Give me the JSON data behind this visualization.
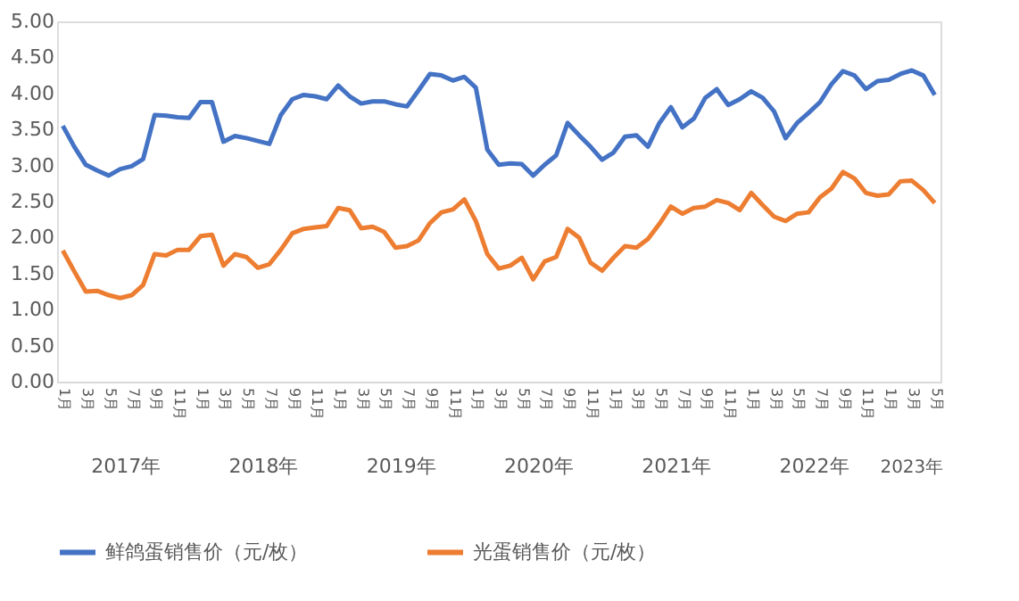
{
  "chart_data": {
    "type": "line",
    "categories": [
      "1月",
      null,
      "3月",
      null,
      "5月",
      null,
      "7月",
      null,
      "9月",
      null,
      "11月",
      null,
      "1月",
      null,
      "3月",
      null,
      "5月",
      null,
      "7月",
      null,
      "9月",
      null,
      "11月",
      null,
      "1月",
      null,
      "3月",
      null,
      "5月",
      null,
      "7月",
      null,
      "9月",
      null,
      "11月",
      null,
      "1月",
      null,
      "3月",
      null,
      "5月",
      null,
      "7月",
      null,
      "9月",
      null,
      "11月",
      null,
      "1月",
      null,
      "3月",
      null,
      "5月",
      null,
      "7月",
      null,
      "9月",
      null,
      "11月",
      null,
      "1月",
      null,
      "3月",
      null,
      "5月",
      null,
      "7月",
      null,
      "9月",
      null,
      "11月",
      null,
      "1月",
      null,
      "3月",
      null,
      "5月"
    ],
    "series": [
      {
        "name": "鲜鸽蛋销售价（元/枚）",
        "color": "#4472c4",
        "values": [
          3.55,
          3.26,
          3.01,
          2.93,
          2.86,
          2.95,
          2.99,
          3.09,
          3.7,
          3.69,
          3.67,
          3.66,
          3.88,
          3.88,
          3.33,
          3.41,
          3.38,
          3.34,
          3.3,
          3.7,
          3.92,
          3.98,
          3.96,
          3.92,
          4.11,
          3.96,
          3.86,
          3.89,
          3.89,
          3.85,
          3.82,
          4.04,
          4.27,
          4.25,
          4.18,
          4.23,
          4.08,
          3.22,
          3.01,
          3.03,
          3.02,
          2.86,
          3.01,
          3.14,
          3.59,
          3.42,
          3.26,
          3.08,
          3.18,
          3.4,
          3.42,
          3.26,
          3.59,
          3.81,
          3.53,
          3.65,
          3.94,
          4.06,
          3.84,
          3.92,
          4.03,
          3.94,
          3.75,
          3.38,
          3.59,
          3.73,
          3.88,
          4.13,
          4.31,
          4.25,
          4.06,
          4.17,
          4.19,
          4.27,
          4.32,
          4.25,
          3.98
        ]
      },
      {
        "name": "光蛋销售价（元/枚）",
        "color": "#ed7d31",
        "values": [
          1.82,
          1.53,
          1.25,
          1.26,
          1.2,
          1.16,
          1.2,
          1.34,
          1.77,
          1.75,
          1.83,
          1.83,
          2.02,
          2.04,
          1.61,
          1.77,
          1.73,
          1.58,
          1.63,
          1.83,
          2.06,
          2.12,
          2.14,
          2.16,
          2.41,
          2.38,
          2.13,
          2.15,
          2.08,
          1.86,
          1.88,
          1.96,
          2.2,
          2.35,
          2.39,
          2.53,
          2.23,
          1.77,
          1.57,
          1.61,
          1.72,
          1.42,
          1.67,
          1.73,
          2.12,
          2.0,
          1.65,
          1.54,
          1.72,
          1.88,
          1.86,
          1.98,
          2.19,
          2.43,
          2.33,
          2.41,
          2.43,
          2.52,
          2.48,
          2.38,
          2.62,
          2.45,
          2.29,
          2.23,
          2.33,
          2.35,
          2.56,
          2.68,
          2.91,
          2.82,
          2.62,
          2.58,
          2.6,
          2.78,
          2.79,
          2.66,
          2.48
        ]
      }
    ],
    "annotations": [
      "2017年",
      "2018年",
      "2019年",
      "2020年",
      "2021年",
      "2022年",
      "2023年"
    ],
    "ylim": [
      0,
      5
    ],
    "yticks": [
      {
        "value": 0,
        "label": "0.00"
      },
      {
        "value": 0.5,
        "label": "0.50"
      },
      {
        "value": 1,
        "label": "1.00"
      },
      {
        "value": 1.5,
        "label": "1.50"
      },
      {
        "value": 2,
        "label": "2.00"
      },
      {
        "value": 2.5,
        "label": "2.50"
      },
      {
        "value": 3,
        "label": "3.00"
      },
      {
        "value": 3.5,
        "label": "3.50"
      },
      {
        "value": 4,
        "label": "4.00"
      },
      {
        "value": 4.5,
        "label": "4.50"
      },
      {
        "value": 5,
        "label": "5.00"
      }
    ],
    "legend": "bottom",
    "line_style": "solid",
    "marker": "none"
  }
}
